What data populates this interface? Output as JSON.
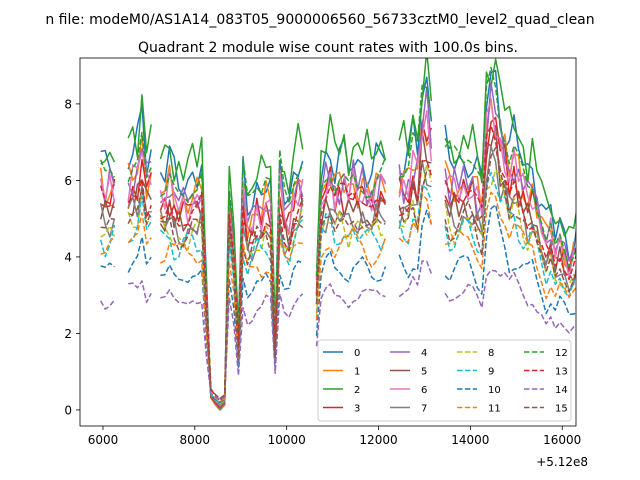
{
  "chart_data": {
    "type": "line",
    "suptitle": "n file: modeM0/AS1A14_083T05_9000006560_56733cztM0_level2_quad_clean",
    "title": "Quadrant 2 module wise count rates with 100.0s bins.",
    "xlabel": "",
    "ylabel": "",
    "x_offset_label": "+5.12e8",
    "xlim": [
      5500,
      16300
    ],
    "ylim": [
      -0.42,
      9.2
    ],
    "xticks": [
      6000,
      8000,
      10000,
      12000,
      14000,
      16000
    ],
    "xtick_labels": [
      "6000",
      "8000",
      "10000",
      "12000",
      "14000",
      "16000"
    ],
    "yticks": [
      0,
      2,
      4,
      6,
      8
    ],
    "ytick_labels": [
      "0",
      "2",
      "4",
      "6",
      "8"
    ],
    "legend_position": "lower-right",
    "legend_columns": 4,
    "x_start": 5950,
    "x_step": 100,
    "gaps": [
      [
        6350,
        6450
      ],
      [
        7100,
        7150
      ],
      [
        10450,
        10550
      ],
      [
        12250,
        12350
      ],
      [
        13250,
        13350
      ]
    ],
    "template": [
      1.0,
      0.96,
      0.99,
      1.0,
      0.98,
      0.99,
      1.0,
      1.03,
      1.05,
      1.18,
      1.02,
      1.1,
      1.0,
      0.97,
      0.95,
      1.0,
      0.94,
      0.92,
      0.93,
      0.92,
      0.95,
      0.94,
      0.97,
      0.5,
      0.05,
      0.02,
      0.0,
      0.02,
      0.9,
      0.7,
      0.3,
      0.95,
      0.82,
      0.85,
      0.9,
      0.88,
      0.93,
      0.9,
      0.3,
      1.0,
      0.88,
      0.85,
      0.95,
      1.0,
      1.02,
      1.05,
      1.08,
      0.55,
      0.95,
      1.02,
      1.05,
      0.97,
      1.0,
      1.0,
      0.97,
      1.02,
      0.99,
      1.0,
      0.97,
      0.95,
      0.98,
      1.0,
      1.05,
      1.0,
      1.08,
      1.02,
      1.0,
      1.0,
      1.1,
      1.05,
      1.28,
      1.3,
      1.2,
      1.0,
      1.04,
      1.05,
      0.99,
      1.0,
      1.0,
      0.99,
      1.02,
      1.0,
      0.95,
      0.9,
      1.25,
      1.35,
      1.32,
      1.2,
      1.15,
      1.05,
      1.1,
      1.05,
      1.0,
      0.95,
      0.98,
      0.9,
      0.85,
      0.75,
      0.8,
      0.7,
      0.75,
      0.7,
      0.65,
      0.7,
      0.75,
      0.72,
      0.68,
      0.5,
      0.3,
      0.9,
      0.95,
      0.85,
      0.45,
      0.95,
      0.6,
      0.2,
      1.0
    ],
    "series": [
      {
        "name": "0",
        "scale": 6.5,
        "color": "#1f77b4",
        "dashed": false
      },
      {
        "name": "1",
        "scale": 5.9,
        "color": "#ff7f0e",
        "dashed": false
      },
      {
        "name": "2",
        "scale": 6.9,
        "color": "#2ca02c",
        "dashed": false
      },
      {
        "name": "3",
        "scale": 5.6,
        "color": "#d62728",
        "dashed": false
      },
      {
        "name": "4",
        "scale": 5.9,
        "color": "#9467bd",
        "dashed": false
      },
      {
        "name": "5",
        "scale": 5.2,
        "color": "#8c564b",
        "dashed": false
      },
      {
        "name": "6",
        "scale": 5.8,
        "color": "#e377c2",
        "dashed": false
      },
      {
        "name": "7",
        "scale": 5.0,
        "color": "#7f7f7f",
        "dashed": false
      },
      {
        "name": "8",
        "scale": 4.8,
        "color": "#bcbd22",
        "dashed": true
      },
      {
        "name": "9",
        "scale": 4.6,
        "color": "#17becf",
        "dashed": true
      },
      {
        "name": "10",
        "scale": 3.7,
        "color": "#1f77b4",
        "dashed": true
      },
      {
        "name": "11",
        "scale": 4.3,
        "color": "#ff7f0e",
        "dashed": true
      },
      {
        "name": "12",
        "scale": 6.3,
        "color": "#2ca02c",
        "dashed": true
      },
      {
        "name": "13",
        "scale": 5.4,
        "color": "#d62728",
        "dashed": true
      },
      {
        "name": "14",
        "scale": 3.0,
        "color": "#9467bd",
        "dashed": true
      },
      {
        "name": "15",
        "scale": 4.9,
        "color": "#8c564b",
        "dashed": true
      }
    ]
  }
}
